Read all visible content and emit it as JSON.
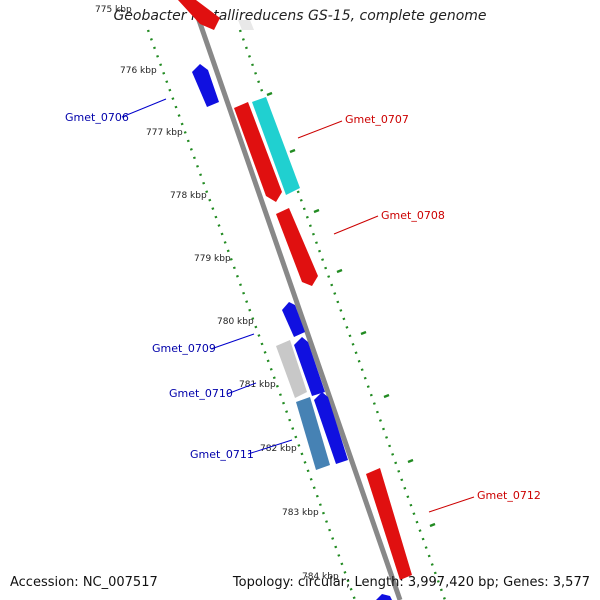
{
  "title": "Geobacter metallireducens GS-15, complete genome",
  "footer": {
    "accession": "Accession: NC_007517",
    "summary": "Topology: circular; Length: 3,997,420 bp; Genes: 3,577"
  },
  "ticks": [
    "775 kbp",
    "776 kbp",
    "777 kbp",
    "778 kbp",
    "779 kbp",
    "780 kbp",
    "781 kbp",
    "782 kbp",
    "783 kbp",
    "784 kbp"
  ],
  "genes": [
    {
      "name": "Gmet_0706",
      "strand": "minus",
      "color": "#0000cc"
    },
    {
      "name": "Gmet_0707",
      "strand": "plus",
      "color": "#cc0000"
    },
    {
      "name": "Gmet_0708",
      "strand": "plus",
      "color": "#cc0000"
    },
    {
      "name": "Gmet_0709",
      "strand": "minus",
      "color": "#0000cc"
    },
    {
      "name": "Gmet_0710",
      "strand": "minus",
      "color": "#0000cc"
    },
    {
      "name": "Gmet_0711",
      "strand": "minus",
      "color": "#0000cc"
    },
    {
      "name": "Gmet_0712",
      "strand": "plus",
      "color": "#cc0000"
    }
  ],
  "colors": {
    "plus_strand": "#cc0000",
    "minus_strand": "#0000cc",
    "backbone": "#888888",
    "ticks": "#228b22",
    "cds_feature": "#20c0c0",
    "light_feature": "#c8c8c8",
    "steel_feature": "#4682b4"
  }
}
